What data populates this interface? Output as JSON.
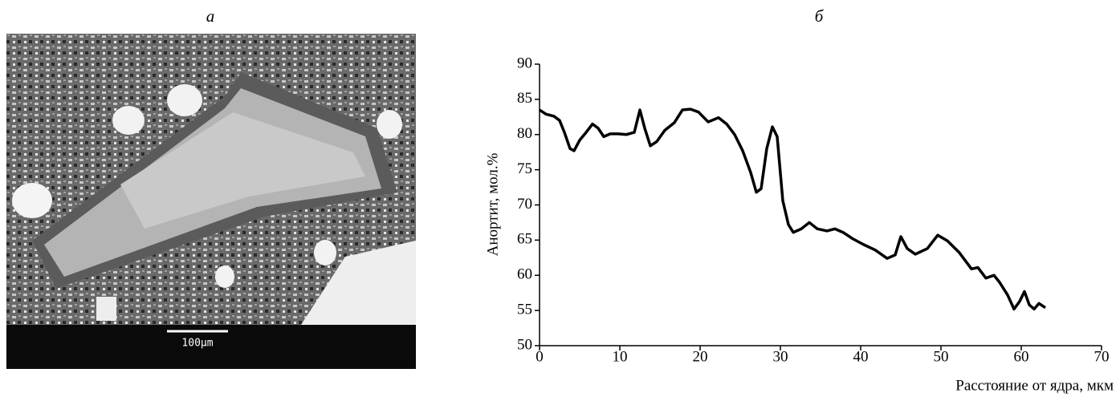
{
  "panels": {
    "left_label": "а",
    "right_label": "б"
  },
  "image": {
    "scale_bar": "100μm"
  },
  "chart_data": {
    "type": "line",
    "y_label": "Анортит, мол.%",
    "x_label": "Расстояние от ядра, мкм",
    "xlim": [
      0,
      70
    ],
    "xticks": [
      0,
      10,
      20,
      30,
      40,
      50,
      60,
      70
    ],
    "ylim": [
      50,
      90
    ],
    "yticks": [
      50,
      55,
      60,
      65,
      70,
      75,
      80,
      85,
      90
    ],
    "color": "#000000",
    "grid": false,
    "series": [
      {
        "name": null,
        "color": "#000000",
        "x": [
          0,
          0.8,
          1.8,
          2.5,
          3.1,
          3.8,
          4.3,
          5,
          5.8,
          6.6,
          7.3,
          8,
          8.8,
          9.8,
          10.8,
          11.8,
          12.5,
          13.1,
          13.8,
          14.6,
          15.6,
          16.8,
          17.8,
          18.8,
          19.8,
          21,
          22.3,
          23.3,
          24.3,
          25.3,
          26.3,
          27,
          27.6,
          28.3,
          29,
          29.6,
          30.3,
          31,
          31.6,
          32.6,
          33.6,
          34.6,
          35.8,
          36.8,
          37.8,
          39,
          40.3,
          41.8,
          43.3,
          44.3,
          45,
          45.8,
          46.8,
          48.3,
          49.6,
          50.8,
          52.3,
          53.8,
          54.6,
          55.6,
          56.6,
          57.3,
          58.3,
          59.1,
          59.8,
          60.4,
          61,
          61.6,
          62.2,
          63
        ],
        "values": [
          83.5,
          82.9,
          82.6,
          82,
          80.3,
          78,
          77.7,
          79.2,
          80.3,
          81.5,
          80.9,
          79.7,
          80.1,
          80.1,
          80,
          80.3,
          83.5,
          80.9,
          78.4,
          79,
          80.6,
          81.7,
          83.5,
          83.6,
          83.2,
          81.8,
          82.4,
          81.5,
          80,
          77.7,
          74.6,
          71.8,
          72.3,
          78,
          81.1,
          79.7,
          70.6,
          67.2,
          66.1,
          66.6,
          67.5,
          66.6,
          66.3,
          66.6,
          66.1,
          65.2,
          64.4,
          63.6,
          62.4,
          62.9,
          65.5,
          63.8,
          63,
          63.8,
          65.7,
          64.9,
          63.2,
          60.9,
          61.1,
          59.6,
          60,
          59,
          57.2,
          55.2,
          56.3,
          57.7,
          55.8,
          55.2,
          56,
          55.4
        ]
      }
    ]
  }
}
